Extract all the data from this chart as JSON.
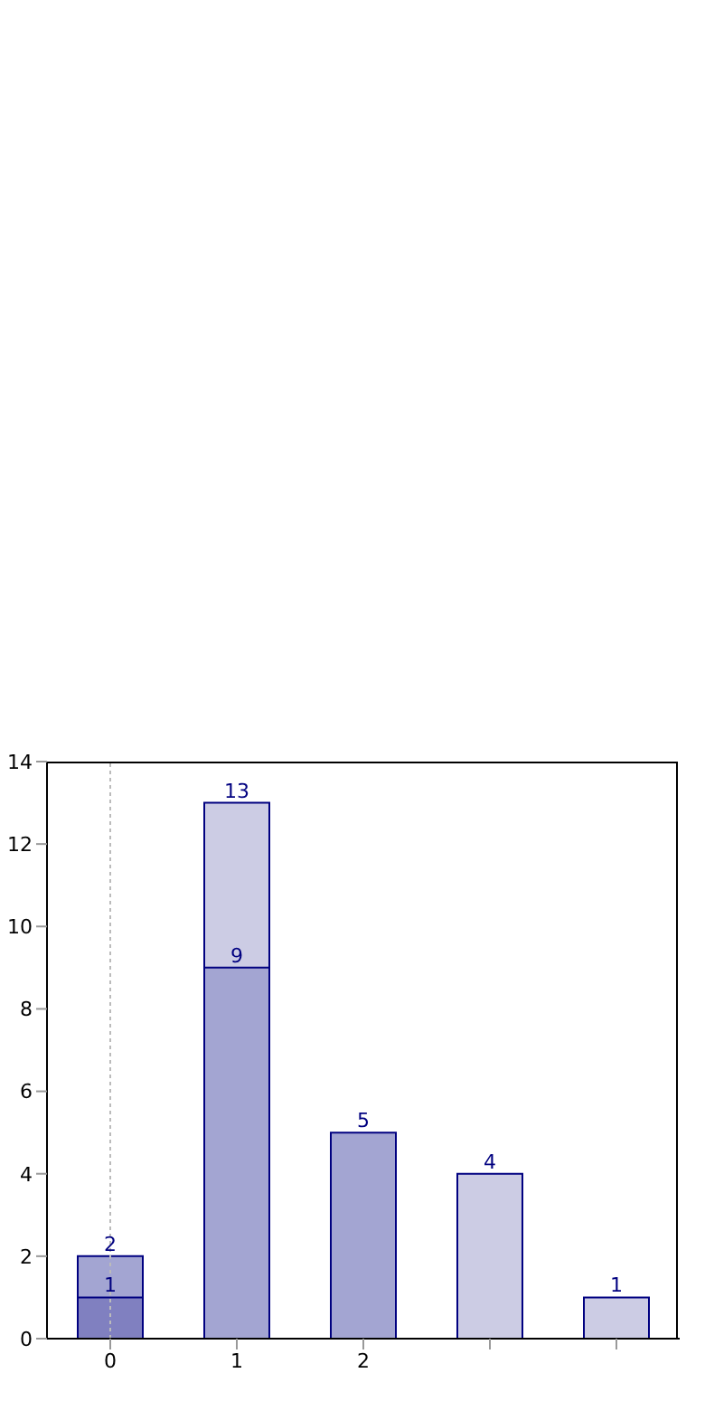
{
  "chart_data": {
    "type": "bar",
    "categories": [
      "0",
      "1",
      "2",
      null,
      null
    ],
    "series": [
      {
        "color": "#cccce4",
        "values": [
          null,
          13,
          null,
          4,
          1
        ]
      },
      {
        "color": "#a3a5d2",
        "values": [
          2,
          9,
          5,
          null,
          null
        ]
      },
      {
        "color": "#8080c0",
        "values": [
          1,
          null,
          null,
          null,
          null
        ]
      }
    ],
    "ylim": [
      0,
      14
    ],
    "yticks": [
      0,
      2,
      4,
      6,
      8,
      10,
      12,
      14
    ],
    "data_labels": true,
    "grid": false,
    "legend": false,
    "ref_lines": [
      {
        "axis": "x",
        "value": "0",
        "color": "#bbbbbb",
        "line_style": "dotted"
      }
    ]
  }
}
